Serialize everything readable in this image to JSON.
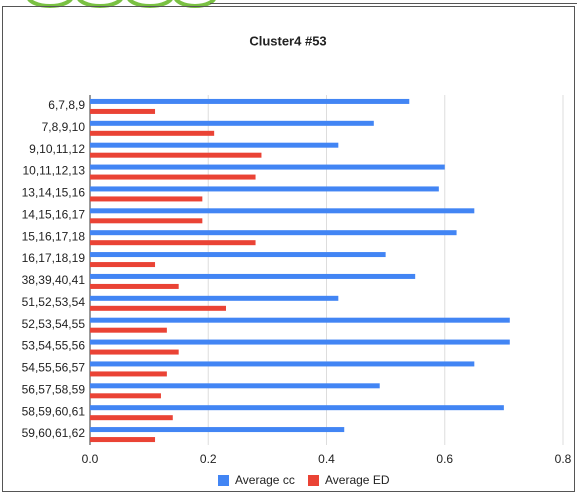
{
  "chart_data": {
    "type": "bar",
    "orientation": "horizontal",
    "title": "Cluster4 #53",
    "categories": [
      "6,7,8,9",
      "7,8,9,10",
      "9,10,11,12",
      "10,11,12,13",
      "13,14,15,16",
      "14,15,16,17",
      "15,16,17,18",
      "16,17,18,19",
      "38,39,40,41",
      "51,52,53,54",
      "52,53,54,55",
      "53,54,55,56",
      "54,55,56,57",
      "56,57,58,59",
      "58,59,60,61",
      "59,60,61,62"
    ],
    "series": [
      {
        "name": "Average cc",
        "color": "#4285f4",
        "values": [
          0.54,
          0.48,
          0.42,
          0.6,
          0.59,
          0.65,
          0.62,
          0.5,
          0.55,
          0.42,
          0.71,
          0.71,
          0.65,
          0.49,
          0.7,
          0.43
        ]
      },
      {
        "name": "Average ED",
        "color": "#ea4335",
        "values": [
          0.11,
          0.21,
          0.29,
          0.28,
          0.19,
          0.19,
          0.28,
          0.11,
          0.15,
          0.23,
          0.13,
          0.15,
          0.13,
          0.12,
          0.14,
          0.11
        ]
      }
    ],
    "xlim": [
      0,
      0.8
    ],
    "xticks": [
      {
        "value": 0,
        "label": "0.0"
      },
      0.2,
      0.4,
      0.6,
      0.8
    ],
    "grid": true,
    "legend": "bottom"
  }
}
